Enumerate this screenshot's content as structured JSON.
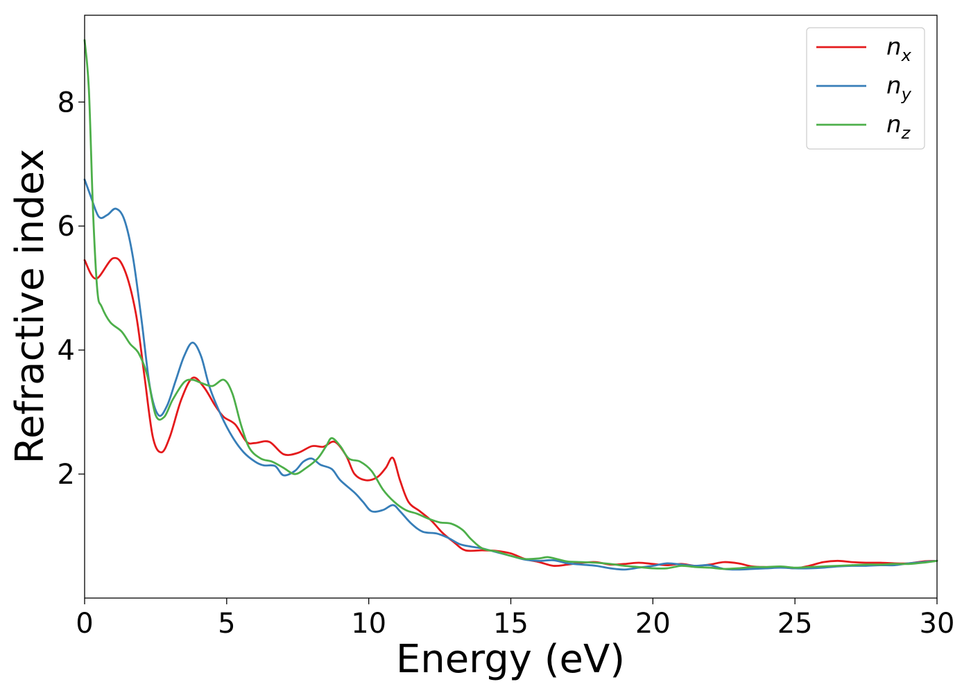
{
  "chart_data": {
    "type": "line",
    "title": "",
    "xlabel": "Energy (eV)",
    "ylabel": "Refractive index",
    "xlim": [
      0,
      30
    ],
    "ylim": [
      0,
      9.4
    ],
    "x_ticks": [
      0,
      5,
      10,
      15,
      20,
      25,
      30
    ],
    "y_ticks": [
      2,
      4,
      6,
      8
    ],
    "grid": false,
    "legend_position": "top-right",
    "series": [
      {
        "name": "n_x",
        "label_base": "n",
        "label_sub": "x",
        "color": "#e41a1c",
        "points": [
          [
            0,
            5.45
          ],
          [
            0.4,
            5.15
          ],
          [
            1.0,
            5.48
          ],
          [
            1.4,
            5.3
          ],
          [
            1.8,
            4.6
          ],
          [
            2.1,
            3.6
          ],
          [
            2.4,
            2.6
          ],
          [
            2.7,
            2.35
          ],
          [
            3.0,
            2.6
          ],
          [
            3.4,
            3.2
          ],
          [
            3.8,
            3.55
          ],
          [
            4.2,
            3.4
          ],
          [
            4.6,
            3.1
          ],
          [
            4.9,
            2.92
          ],
          [
            5.3,
            2.8
          ],
          [
            5.7,
            2.52
          ],
          [
            6.0,
            2.5
          ],
          [
            6.5,
            2.52
          ],
          [
            7.0,
            2.32
          ],
          [
            7.5,
            2.34
          ],
          [
            8.0,
            2.45
          ],
          [
            8.4,
            2.44
          ],
          [
            8.8,
            2.52
          ],
          [
            9.2,
            2.3
          ],
          [
            9.5,
            2.0
          ],
          [
            9.9,
            1.9
          ],
          [
            10.3,
            1.95
          ],
          [
            10.6,
            2.1
          ],
          [
            10.85,
            2.26
          ],
          [
            11.1,
            1.9
          ],
          [
            11.4,
            1.55
          ],
          [
            11.8,
            1.4
          ],
          [
            12.2,
            1.25
          ],
          [
            12.6,
            1.05
          ],
          [
            13.0,
            0.9
          ],
          [
            13.4,
            0.77
          ],
          [
            14.0,
            0.77
          ],
          [
            14.5,
            0.76
          ],
          [
            15.0,
            0.72
          ],
          [
            15.5,
            0.63
          ],
          [
            16.0,
            0.58
          ],
          [
            16.5,
            0.52
          ],
          [
            17.0,
            0.54
          ],
          [
            17.5,
            0.57
          ],
          [
            18.0,
            0.58
          ],
          [
            18.5,
            0.54
          ],
          [
            19.0,
            0.55
          ],
          [
            19.5,
            0.57
          ],
          [
            20.0,
            0.55
          ],
          [
            20.5,
            0.53
          ],
          [
            21.0,
            0.55
          ],
          [
            21.5,
            0.52
          ],
          [
            22.0,
            0.54
          ],
          [
            22.5,
            0.58
          ],
          [
            23.0,
            0.56
          ],
          [
            23.5,
            0.51
          ],
          [
            24.0,
            0.5
          ],
          [
            24.5,
            0.5
          ],
          [
            25.0,
            0.48
          ],
          [
            25.5,
            0.52
          ],
          [
            26.0,
            0.58
          ],
          [
            26.5,
            0.6
          ],
          [
            27.0,
            0.58
          ],
          [
            27.5,
            0.57
          ],
          [
            28.0,
            0.57
          ],
          [
            28.5,
            0.56
          ],
          [
            29.0,
            0.56
          ],
          [
            29.5,
            0.59
          ],
          [
            30.0,
            0.6
          ]
        ]
      },
      {
        "name": "n_y",
        "label_base": "n",
        "label_sub": "y",
        "color": "#377eb8",
        "points": [
          [
            0,
            6.75
          ],
          [
            0.2,
            6.5
          ],
          [
            0.5,
            6.15
          ],
          [
            0.8,
            6.18
          ],
          [
            1.1,
            6.28
          ],
          [
            1.4,
            6.1
          ],
          [
            1.7,
            5.5
          ],
          [
            2.0,
            4.5
          ],
          [
            2.3,
            3.4
          ],
          [
            2.6,
            2.95
          ],
          [
            2.9,
            3.1
          ],
          [
            3.2,
            3.5
          ],
          [
            3.5,
            3.9
          ],
          [
            3.8,
            4.12
          ],
          [
            4.1,
            3.9
          ],
          [
            4.4,
            3.4
          ],
          [
            4.8,
            2.95
          ],
          [
            5.2,
            2.6
          ],
          [
            5.6,
            2.35
          ],
          [
            6.0,
            2.2
          ],
          [
            6.3,
            2.14
          ],
          [
            6.7,
            2.13
          ],
          [
            7.0,
            1.98
          ],
          [
            7.4,
            2.05
          ],
          [
            7.7,
            2.2
          ],
          [
            8.0,
            2.25
          ],
          [
            8.3,
            2.15
          ],
          [
            8.7,
            2.08
          ],
          [
            9.0,
            1.9
          ],
          [
            9.5,
            1.7
          ],
          [
            9.8,
            1.55
          ],
          [
            10.1,
            1.4
          ],
          [
            10.5,
            1.42
          ],
          [
            10.85,
            1.5
          ],
          [
            11.1,
            1.4
          ],
          [
            11.5,
            1.2
          ],
          [
            11.9,
            1.07
          ],
          [
            12.4,
            1.04
          ],
          [
            12.8,
            0.97
          ],
          [
            13.2,
            0.87
          ],
          [
            13.6,
            0.83
          ],
          [
            14.0,
            0.8
          ],
          [
            14.5,
            0.74
          ],
          [
            15.0,
            0.68
          ],
          [
            15.5,
            0.62
          ],
          [
            16.0,
            0.6
          ],
          [
            16.5,
            0.61
          ],
          [
            17.0,
            0.56
          ],
          [
            17.5,
            0.54
          ],
          [
            18.0,
            0.52
          ],
          [
            18.5,
            0.48
          ],
          [
            19.0,
            0.46
          ],
          [
            19.5,
            0.49
          ],
          [
            20.0,
            0.52
          ],
          [
            20.5,
            0.56
          ],
          [
            21.0,
            0.54
          ],
          [
            21.5,
            0.52
          ],
          [
            22.0,
            0.53
          ],
          [
            22.5,
            0.47
          ],
          [
            23.0,
            0.46
          ],
          [
            23.5,
            0.47
          ],
          [
            24.0,
            0.48
          ],
          [
            24.5,
            0.49
          ],
          [
            25.0,
            0.48
          ],
          [
            25.5,
            0.48
          ],
          [
            26.0,
            0.49
          ],
          [
            26.5,
            0.51
          ],
          [
            27.0,
            0.52
          ],
          [
            27.5,
            0.52
          ],
          [
            28.0,
            0.53
          ],
          [
            28.5,
            0.53
          ],
          [
            29.0,
            0.56
          ],
          [
            29.5,
            0.58
          ],
          [
            30.0,
            0.6
          ]
        ]
      },
      {
        "name": "n_z",
        "label_base": "n",
        "label_sub": "z",
        "color": "#4daf4a",
        "points": [
          [
            0,
            9.0
          ],
          [
            0.15,
            8.2
          ],
          [
            0.3,
            6.2
          ],
          [
            0.45,
            4.95
          ],
          [
            0.6,
            4.7
          ],
          [
            0.9,
            4.45
          ],
          [
            1.3,
            4.3
          ],
          [
            1.6,
            4.1
          ],
          [
            1.9,
            3.95
          ],
          [
            2.2,
            3.6
          ],
          [
            2.5,
            2.95
          ],
          [
            2.8,
            2.92
          ],
          [
            3.1,
            3.2
          ],
          [
            3.5,
            3.48
          ],
          [
            3.8,
            3.52
          ],
          [
            4.1,
            3.47
          ],
          [
            4.5,
            3.42
          ],
          [
            4.9,
            3.52
          ],
          [
            5.2,
            3.3
          ],
          [
            5.5,
            2.8
          ],
          [
            5.8,
            2.42
          ],
          [
            6.2,
            2.25
          ],
          [
            6.6,
            2.2
          ],
          [
            7.0,
            2.1
          ],
          [
            7.4,
            2.0
          ],
          [
            7.8,
            2.1
          ],
          [
            8.2,
            2.25
          ],
          [
            8.5,
            2.45
          ],
          [
            8.7,
            2.58
          ],
          [
            9.0,
            2.45
          ],
          [
            9.3,
            2.25
          ],
          [
            9.7,
            2.2
          ],
          [
            10.1,
            2.05
          ],
          [
            10.5,
            1.75
          ],
          [
            10.9,
            1.55
          ],
          [
            11.3,
            1.42
          ],
          [
            11.7,
            1.36
          ],
          [
            12.1,
            1.28
          ],
          [
            12.5,
            1.22
          ],
          [
            12.9,
            1.2
          ],
          [
            13.3,
            1.1
          ],
          [
            13.6,
            0.95
          ],
          [
            14.0,
            0.8
          ],
          [
            14.5,
            0.75
          ],
          [
            15.0,
            0.68
          ],
          [
            15.5,
            0.63
          ],
          [
            16.0,
            0.64
          ],
          [
            16.3,
            0.66
          ],
          [
            16.7,
            0.62
          ],
          [
            17.0,
            0.59
          ],
          [
            17.5,
            0.58
          ],
          [
            18.0,
            0.57
          ],
          [
            18.5,
            0.55
          ],
          [
            19.0,
            0.52
          ],
          [
            19.5,
            0.5
          ],
          [
            20.0,
            0.48
          ],
          [
            20.5,
            0.48
          ],
          [
            21.0,
            0.52
          ],
          [
            21.5,
            0.5
          ],
          [
            22.0,
            0.49
          ],
          [
            22.5,
            0.47
          ],
          [
            23.0,
            0.48
          ],
          [
            23.5,
            0.5
          ],
          [
            24.0,
            0.5
          ],
          [
            24.5,
            0.51
          ],
          [
            25.0,
            0.49
          ],
          [
            25.5,
            0.5
          ],
          [
            26.0,
            0.51
          ],
          [
            26.5,
            0.52
          ],
          [
            27.0,
            0.53
          ],
          [
            27.5,
            0.54
          ],
          [
            28.0,
            0.54
          ],
          [
            28.5,
            0.55
          ],
          [
            29.0,
            0.55
          ],
          [
            29.5,
            0.57
          ],
          [
            30.0,
            0.6
          ]
        ]
      }
    ]
  }
}
